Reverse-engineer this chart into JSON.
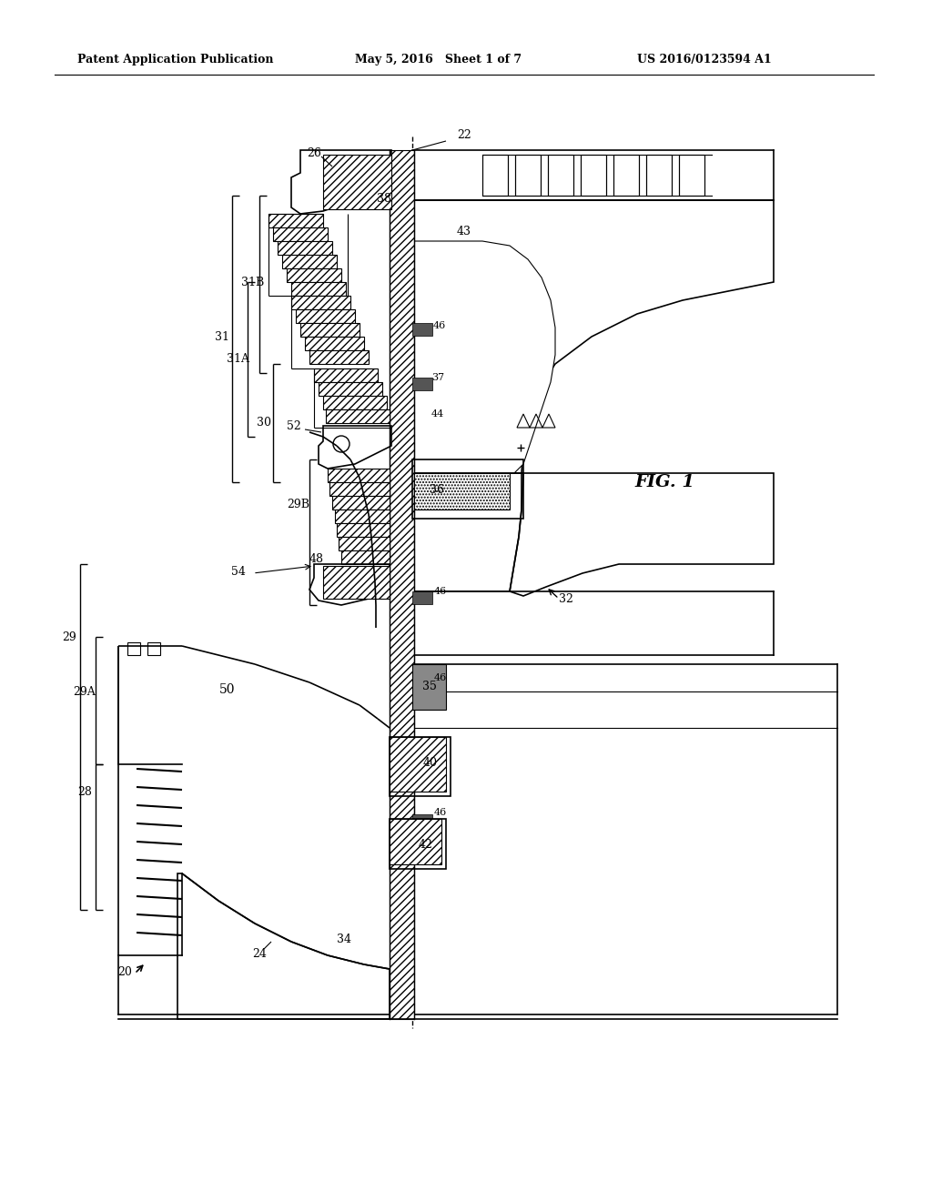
{
  "header_left": "Patent Application Publication",
  "header_mid": "May 5, 2016   Sheet 1 of 7",
  "header_right": "US 2016/0123594 A1",
  "fig_label": "FIG. 1",
  "background": "#ffffff",
  "line_color": "#000000"
}
